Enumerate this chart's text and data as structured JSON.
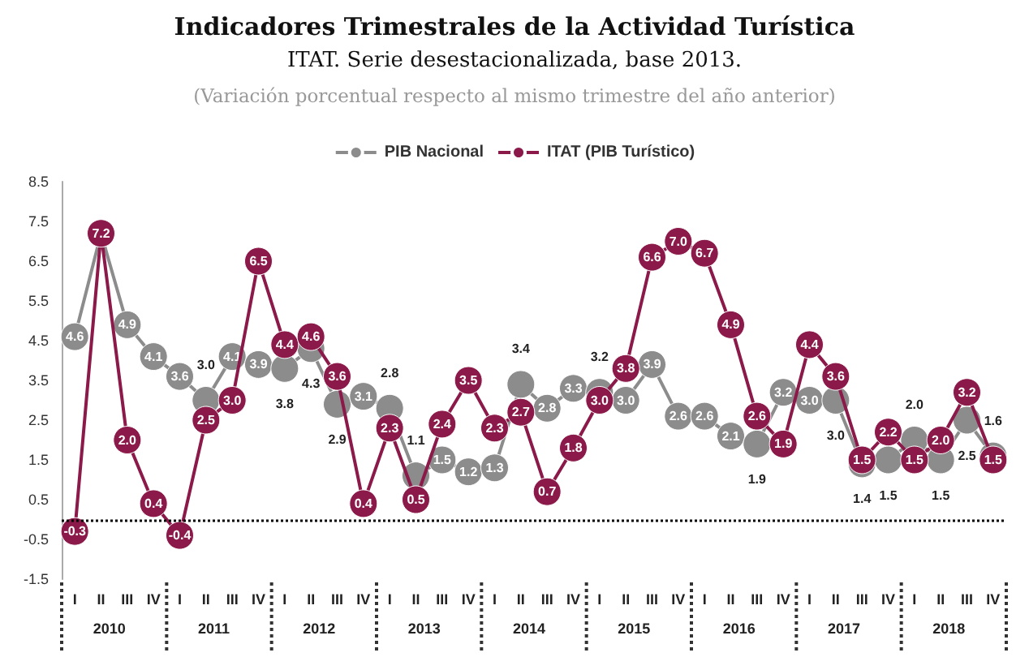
{
  "chart_data": {
    "type": "line",
    "title": "Indicadores Trimestrales de la Actividad Turística",
    "subtitle": "ITAT. Serie desestacionalizada, base 2013.",
    "annotations": [
      "(Variación porcentual respecto al mismo trimestre del año anterior)",
      "2010",
      "2011",
      "2012",
      "2013",
      "2014",
      "2015",
      "2016",
      "2017",
      "2018"
    ],
    "categories": [
      "I",
      "II",
      "III",
      "IV",
      "I",
      "II",
      "III",
      "IV",
      "I",
      "II",
      "III",
      "IV",
      "I",
      "II",
      "III",
      "IV",
      "I",
      "II",
      "III",
      "IV",
      "I",
      "II",
      "III",
      "IV",
      "I",
      "II",
      "III",
      "IV",
      "I",
      "II",
      "III",
      "IV",
      "I",
      "II",
      "III",
      "IV"
    ],
    "series": [
      {
        "name": "PIB Nacional",
        "color": "#8c8c8c",
        "values": [
          4.6,
          7.2,
          4.9,
          4.1,
          3.6,
          3.0,
          4.1,
          3.9,
          3.8,
          4.3,
          2.9,
          3.1,
          2.8,
          1.1,
          1.5,
          1.2,
          1.3,
          3.4,
          2.8,
          3.3,
          3.2,
          3.0,
          3.9,
          2.6,
          2.6,
          2.1,
          1.9,
          3.2,
          3.0,
          3.0,
          1.4,
          1.5,
          2.0,
          1.5,
          2.5,
          1.6
        ],
        "value_labels": [
          "4.6",
          null,
          "4.9",
          "4.1",
          "3.6",
          "3.0",
          "4.1",
          "3.9",
          "3.8",
          "4.3",
          "2.9",
          "3.1",
          "2.8",
          "1.1",
          "1.5",
          "1.2",
          "1.3",
          "3.4",
          "2.8",
          "3.3",
          "3.2",
          "3.0",
          "3.9",
          "2.6",
          "2.6",
          "2.1",
          "1.9",
          "3.2",
          "3.0",
          "3.0",
          "1.4",
          "1.5",
          "2.0",
          "1.5",
          "2.5",
          "1.6"
        ]
      },
      {
        "name": "ITAT (PIB Turístico)",
        "color": "#8b1a4a",
        "values": [
          -0.3,
          7.2,
          2.0,
          0.4,
          -0.4,
          2.5,
          3.0,
          6.5,
          4.4,
          4.6,
          3.6,
          0.4,
          2.3,
          0.5,
          2.4,
          3.5,
          2.3,
          2.7,
          0.7,
          1.8,
          3.0,
          3.8,
          6.6,
          7.0,
          6.7,
          4.9,
          2.6,
          1.9,
          4.4,
          3.6,
          1.5,
          2.2,
          1.5,
          2.0,
          3.2,
          1.5
        ],
        "value_labels": [
          "-0.3",
          "7.2",
          "2.0",
          "0.4",
          "-0.4",
          "2.5",
          "3.0",
          "6.5",
          "4.4",
          "4.6",
          "3.6",
          "0.4",
          "2.3",
          "0.5",
          "2.4",
          "3.5",
          "2.3",
          "2.7",
          "0.7",
          "1.8",
          "3.0",
          "3.8",
          "6.6",
          "7.0",
          "6.7",
          "4.9",
          "2.6",
          "1.9",
          "4.4",
          "3.6",
          "1.5",
          "2.2",
          "1.5",
          "2.0",
          "3.2",
          "1.5"
        ]
      }
    ],
    "ylim": [
      -1.5,
      8.5
    ],
    "yticks": [
      -1.5,
      -0.5,
      0.5,
      1.5,
      2.5,
      3.5,
      4.5,
      5.5,
      6.5,
      7.5,
      8.5
    ],
    "ref_lines": [
      {
        "axis": "y",
        "value": 0,
        "color": "#000000",
        "line_style": "dotted"
      }
    ],
    "grid": false,
    "legend": "top",
    "marker": "circle",
    "line_style": "solid"
  }
}
